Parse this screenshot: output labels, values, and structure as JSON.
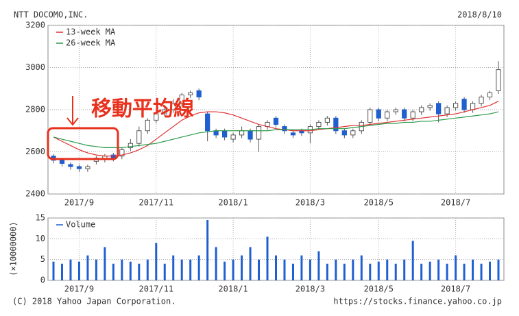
{
  "chart_data": [
    {
      "type": "candlestick",
      "title": "NTT DOCOMO,INC.",
      "date": "2018/8/10",
      "annotation": "移動平均線",
      "categories": [
        null,
        null,
        null,
        "2017/9",
        null,
        null,
        null,
        null,
        null,
        null,
        null,
        null,
        "2017/11",
        null,
        null,
        null,
        null,
        null,
        null,
        null,
        null,
        "2018/1",
        null,
        null,
        null,
        null,
        null,
        null,
        null,
        null,
        "2018/3",
        null,
        null,
        null,
        null,
        null,
        null,
        null,
        "2018/5",
        null,
        null,
        null,
        null,
        null,
        null,
        null,
        null,
        "2018/7",
        null,
        null,
        null,
        null,
        null
      ],
      "open": [
        2580,
        2560,
        2540,
        2530,
        2520,
        2555,
        2565,
        2585,
        2580,
        2620,
        2640,
        2700,
        2750,
        2780,
        2800,
        2830,
        2870,
        2890,
        2780,
        2700,
        2700,
        2660,
        2680,
        2700,
        2660,
        2720,
        2760,
        2720,
        2690,
        2700,
        2690,
        2720,
        2740,
        2760,
        2700,
        2680,
        2700,
        2740,
        2800,
        2760,
        2790,
        2800,
        2760,
        2790,
        2810,
        2830,
        2780,
        2810,
        2850,
        2800,
        2830,
        2860,
        2890
      ],
      "high": [
        2590,
        2570,
        2550,
        2540,
        2540,
        2580,
        2590,
        2595,
        2620,
        2660,
        2720,
        2760,
        2790,
        2820,
        2850,
        2880,
        2890,
        2900,
        2790,
        2710,
        2710,
        2690,
        2720,
        2710,
        2730,
        2750,
        2770,
        2730,
        2700,
        2710,
        2730,
        2750,
        2770,
        2770,
        2710,
        2710,
        2750,
        2810,
        2810,
        2800,
        2810,
        2810,
        2800,
        2820,
        2830,
        2840,
        2820,
        2840,
        2860,
        2840,
        2870,
        2890,
        3030
      ],
      "low": [
        2545,
        2530,
        2515,
        2505,
        2505,
        2540,
        2550,
        2555,
        2565,
        2605,
        2625,
        2685,
        2735,
        2765,
        2785,
        2815,
        2855,
        2845,
        2650,
        2665,
        2655,
        2645,
        2665,
        2645,
        2600,
        2705,
        2715,
        2685,
        2665,
        2675,
        2640,
        2705,
        2725,
        2685,
        2665,
        2665,
        2685,
        2725,
        2745,
        2745,
        2775,
        2745,
        2745,
        2775,
        2795,
        2740,
        2765,
        2795,
        2785,
        2785,
        2815,
        2845,
        2875
      ],
      "close": [
        2560,
        2545,
        2530,
        2520,
        2530,
        2570,
        2580,
        2570,
        2610,
        2640,
        2700,
        2750,
        2780,
        2800,
        2830,
        2870,
        2880,
        2860,
        2700,
        2680,
        2670,
        2680,
        2700,
        2660,
        2720,
        2740,
        2730,
        2700,
        2680,
        2690,
        2720,
        2740,
        2760,
        2700,
        2680,
        2700,
        2740,
        2800,
        2760,
        2790,
        2800,
        2760,
        2790,
        2810,
        2820,
        2780,
        2810,
        2830,
        2800,
        2830,
        2860,
        2880,
        2990
      ],
      "up_color": "#ffffff",
      "down_color": "#1f5fd0",
      "series": [
        {
          "name": "13-week MA",
          "color": "#e03030",
          "values": [
            2670,
            2650,
            2630,
            2610,
            2595,
            2585,
            2580,
            2580,
            2585,
            2595,
            2610,
            2630,
            2660,
            2690,
            2720,
            2750,
            2770,
            2785,
            2790,
            2790,
            2785,
            2775,
            2760,
            2745,
            2730,
            2720,
            2710,
            2705,
            2700,
            2700,
            2700,
            2705,
            2710,
            2715,
            2720,
            2725,
            2725,
            2730,
            2735,
            2740,
            2745,
            2750,
            2755,
            2760,
            2765,
            2770,
            2775,
            2780,
            2790,
            2800,
            2810,
            2820,
            2840
          ]
        },
        {
          "name": "26-week MA",
          "color": "#2a9a4a",
          "values": [
            2670,
            2660,
            2650,
            2640,
            2630,
            2625,
            2620,
            2620,
            2620,
            2625,
            2630,
            2635,
            2640,
            2650,
            2660,
            2670,
            2680,
            2690,
            2695,
            2700,
            2700,
            2700,
            2700,
            2700,
            2700,
            2700,
            2705,
            2705,
            2705,
            2705,
            2705,
            2710,
            2710,
            2710,
            2710,
            2715,
            2720,
            2725,
            2730,
            2735,
            2735,
            2740,
            2740,
            2745,
            2745,
            2750,
            2755,
            2760,
            2765,
            2770,
            2775,
            2780,
            2790
          ]
        }
      ],
      "ylim": [
        2400,
        3200
      ],
      "yticks": [
        2400,
        2600,
        2800,
        3000,
        3200
      ],
      "grid": true,
      "legend": "upper left"
    },
    {
      "type": "bar",
      "y_label": "(×10000000)",
      "categories": [
        null,
        null,
        null,
        "2017/9",
        null,
        null,
        null,
        null,
        null,
        null,
        null,
        null,
        "2017/11",
        null,
        null,
        null,
        null,
        null,
        null,
        null,
        null,
        "2018/1",
        null,
        null,
        null,
        null,
        null,
        null,
        null,
        null,
        "2018/3",
        null,
        null,
        null,
        null,
        null,
        null,
        null,
        "2018/5",
        null,
        null,
        null,
        null,
        null,
        null,
        null,
        null,
        "2018/7",
        null,
        null,
        null,
        null,
        null
      ],
      "series": [
        {
          "name": "Volume",
          "color": "#1f5fd0",
          "values": [
            4.5,
            4,
            5,
            4.5,
            6,
            5,
            8,
            4,
            5,
            4.5,
            4,
            5,
            9,
            4,
            6,
            5,
            5,
            6,
            14.5,
            8,
            4.5,
            5,
            6,
            8,
            5,
            10.5,
            6,
            5,
            4,
            6,
            5,
            7,
            4,
            5,
            4,
            5,
            6,
            4,
            4.5,
            5,
            4,
            5,
            9.5,
            4,
            4.5,
            5,
            4,
            6,
            4,
            5,
            4,
            4.5,
            5
          ]
        }
      ],
      "ylim": [
        0,
        15
      ],
      "yticks": [
        0,
        5,
        10,
        15
      ],
      "grid": true,
      "legend": "upper left"
    }
  ],
  "footer": {
    "copyright": "(C) 2018 Yahoo Japan Corporation.",
    "url": "https://stocks.finance.yahoo.co.jp"
  }
}
